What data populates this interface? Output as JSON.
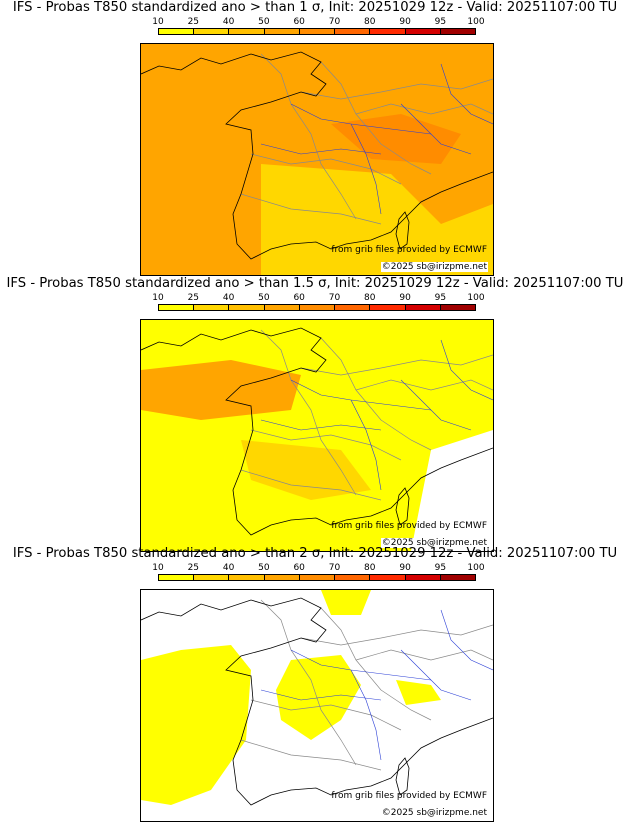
{
  "panels": [
    {
      "title": "IFS - Probas T850  standardized ano > than 1 σ, Init: 20251029 12z - Valid: 20251107:00 TU",
      "coverage": "high"
    },
    {
      "title": "IFS - Probas T850  standardized ano > than 1.5 σ, Init: 20251029 12z - Valid: 20251107:00 TU",
      "coverage": "medium"
    },
    {
      "title": "IFS - Probas T850  standardized ano > than 2 σ, Init: 20251029 12z - Valid: 20251107:00 TU",
      "coverage": "low"
    }
  ],
  "scale": {
    "labels": [
      "10",
      "25",
      "40",
      "50",
      "60",
      "70",
      "80",
      "90",
      "95",
      "100"
    ],
    "colors": [
      "#ffff00",
      "#ffd700",
      "#ffbf00",
      "#ffa500",
      "#ff8c00",
      "#ff6600",
      "#ff2a00",
      "#d40000",
      "#a00000",
      "#600000"
    ]
  },
  "credits": {
    "source": "from grib files provided by ECMWF",
    "copyright": "©2025 sb@irizpme.net"
  }
}
